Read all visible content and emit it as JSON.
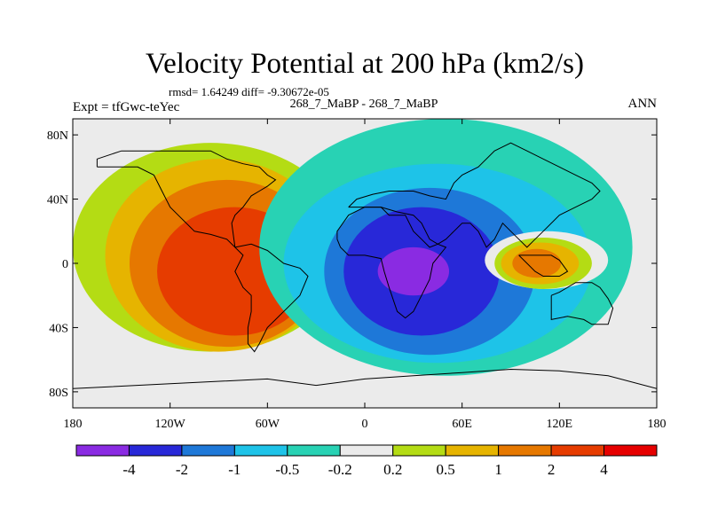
{
  "chart_data": {
    "type": "heatmap",
    "title": "Velocity Potential at 200 hPa (km2/s)",
    "stats": "rmsd= 1.64249 diff= -9.30672e-05",
    "subtitle": "268_7_MaBP - 268_7_MaBP",
    "left_label": "Expt = tfGwc-teYec",
    "right_label": "ANN",
    "x_ticks": [
      "180",
      "120W",
      "60W",
      "0",
      "60E",
      "120E",
      "180"
    ],
    "x_tick_lons": [
      -180,
      -120,
      -60,
      0,
      60,
      120,
      180
    ],
    "y_ticks": [
      "80N",
      "40N",
      "0",
      "40S",
      "80S"
    ],
    "y_tick_lats": [
      80,
      40,
      0,
      -40,
      -80
    ],
    "xlim": [
      -180,
      180
    ],
    "ylim": [
      -90,
      90
    ],
    "colorbar_labels": [
      "-4",
      "-2",
      "-1",
      "-0.5",
      "-0.2",
      "0.2",
      "0.5",
      "1",
      "2",
      "4"
    ],
    "colorbar_colors": [
      "#8a2be2",
      "#2828d8",
      "#1e78d8",
      "#1ec3e8",
      "#28d2b4",
      "#ebebeb",
      "#b4dc14",
      "#e6b400",
      "#e67800",
      "#e63c00",
      "#e60000"
    ],
    "field_regions": [
      {
        "level": 6,
        "label": "0.2",
        "center": [
          -95,
          10
        ],
        "radius": [
          85,
          65
        ]
      },
      {
        "level": 7,
        "label": "0.5",
        "center": [
          -90,
          5
        ],
        "radius": [
          70,
          60
        ]
      },
      {
        "level": 8,
        "label": "1",
        "center": [
          -85,
          0
        ],
        "radius": [
          60,
          52
        ]
      },
      {
        "level": 9,
        "label": "2",
        "center": [
          -80,
          -5
        ],
        "radius": [
          48,
          40
        ]
      },
      {
        "level": 4,
        "label": "-0.2",
        "center": [
          50,
          10
        ],
        "radius": [
          115,
          80
        ]
      },
      {
        "level": 3,
        "label": "-0.5",
        "center": [
          45,
          0
        ],
        "radius": [
          95,
          62
        ]
      },
      {
        "level": 2,
        "label": "-1",
        "center": [
          40,
          -5
        ],
        "radius": [
          65,
          52
        ]
      },
      {
        "level": 1,
        "label": "-2",
        "center": [
          35,
          -5
        ],
        "radius": [
          48,
          40
        ]
      },
      {
        "level": 0,
        "label": "-4",
        "center": [
          30,
          -5
        ],
        "radius": [
          22,
          15
        ]
      },
      {
        "level": 5,
        "label": "-0.2..0.2",
        "center": [
          112,
          2
        ],
        "radius": [
          38,
          18
        ]
      },
      {
        "level": 6,
        "label": "0.2",
        "center": [
          110,
          0
        ],
        "radius": [
          30,
          16
        ]
      },
      {
        "level": 7,
        "label": "0.5",
        "center": [
          108,
          0
        ],
        "radius": [
          24,
          13
        ]
      },
      {
        "level": 8,
        "label": "1",
        "center": [
          106,
          0
        ],
        "radius": [
          15,
          9
        ]
      }
    ]
  }
}
